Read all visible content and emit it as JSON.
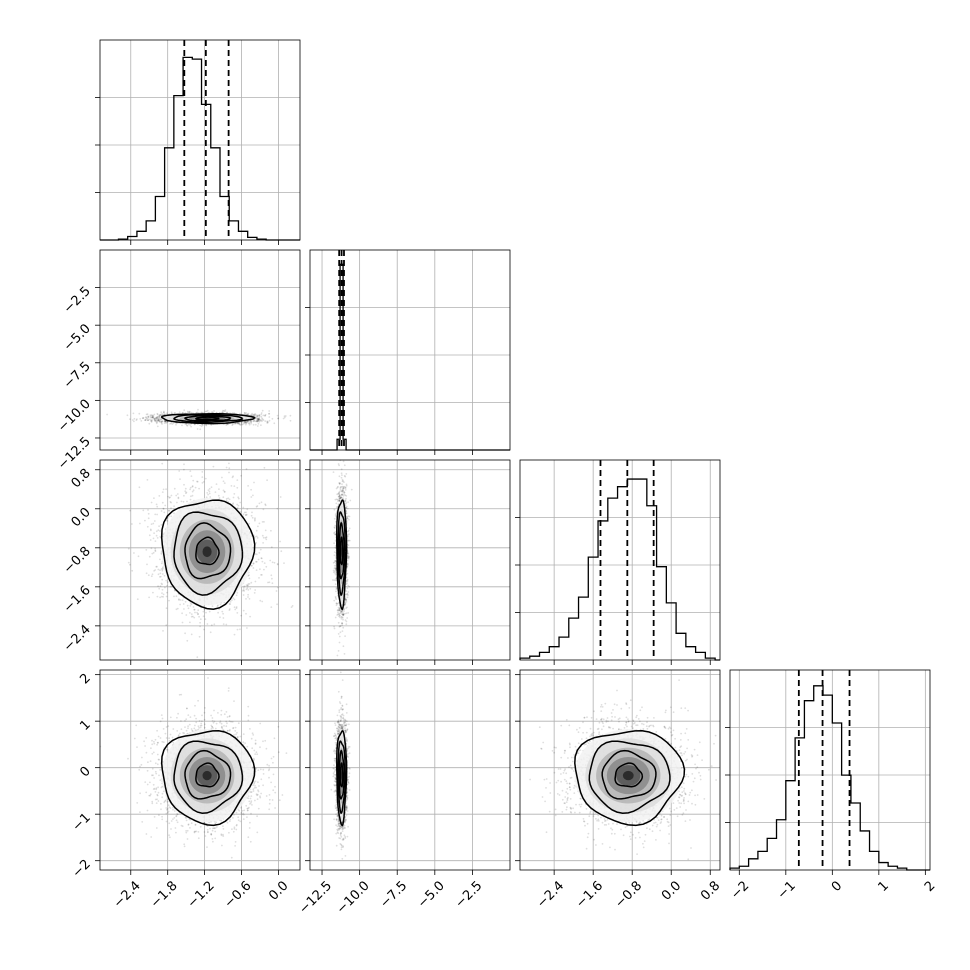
{
  "chart_data": {
    "type": "corner",
    "grid": true,
    "title": "",
    "parameters": [
      {
        "index": 0,
        "range": [
          -2.9,
          0.35
        ],
        "ticks": [
          -2.4,
          -1.8,
          -1.2,
          -0.6,
          0.0
        ],
        "tick_labels": [
          "−2.4",
          "−1.8",
          "−1.2",
          "−0.6",
          "0.0"
        ],
        "quantiles": [
          -1.53,
          -1.18,
          -0.81
        ],
        "center": -1.16,
        "sd": 0.37,
        "histogram": {
          "bin_edges": [
            -2.6,
            -2.45,
            -2.3,
            -2.15,
            -2.0,
            -1.85,
            -1.7,
            -1.55,
            -1.4,
            -1.25,
            -1.1,
            -0.95,
            -0.8,
            -0.65,
            -0.5,
            -0.35,
            -0.2,
            -0.05,
            0.1,
            0.25
          ],
          "counts": [
            1,
            4,
            10,
            22,
            50,
            106,
            166,
            210,
            208,
            156,
            106,
            50,
            22,
            10,
            3,
            1,
            0,
            0,
            0
          ]
        },
        "hist_ymax": 230
      },
      {
        "index": 1,
        "range": [
          -13.3,
          0.0
        ],
        "ticks": [
          -12.5,
          -10.0,
          -7.5,
          -5.0,
          -2.5
        ],
        "tick_labels": [
          "−12.5",
          "−10.0",
          "−7.5",
          "−5.0",
          "−2.5"
        ],
        "quantiles": [
          -11.36,
          -11.2,
          -11.04
        ],
        "center": -11.2,
        "sd": 0.16,
        "histogram": {
          "bin_edges": [
            -11.5,
            -11.3,
            -11.1,
            -10.9
          ],
          "counts": [
            30,
            520,
            30
          ]
        },
        "hist_ymax": 560
      },
      {
        "index": 2,
        "range": [
          -3.1,
          1.0
        ],
        "ticks": [
          -2.4,
          -1.6,
          -0.8,
          0.0,
          0.8
        ],
        "tick_labels": [
          "−2.4",
          "−1.6",
          "−0.8",
          "0.0",
          "0.8"
        ],
        "quantiles": [
          -1.45,
          -0.9,
          -0.36
        ],
        "center": -0.88,
        "sd": 0.55,
        "histogram": {
          "bin_edges": [
            -3.1,
            -2.9,
            -2.7,
            -2.5,
            -2.3,
            -2.1,
            -1.9,
            -1.7,
            -1.5,
            -1.3,
            -1.1,
            -0.9,
            -0.7,
            -0.5,
            -0.3,
            -0.1,
            0.1,
            0.3,
            0.5,
            0.7,
            0.9
          ],
          "counts": [
            2,
            4,
            8,
            14,
            24,
            44,
            66,
            108,
            146,
            170,
            182,
            190,
            190,
            162,
            98,
            60,
            28,
            14,
            8,
            2
          ]
        },
        "hist_ymax": 210
      },
      {
        "index": 3,
        "range": [
          -2.2,
          2.1
        ],
        "ticks": [
          -2,
          -1,
          0,
          1,
          2
        ],
        "tick_labels": [
          "−2",
          "−1",
          "0",
          "1",
          "2"
        ],
        "quantiles": [
          -0.72,
          -0.21,
          0.37
        ],
        "center": -0.17,
        "sd": 0.5,
        "histogram": {
          "bin_edges": [
            -2.2,
            -2.0,
            -1.8,
            -1.6,
            -1.4,
            -1.2,
            -1.0,
            -0.8,
            -0.6,
            -0.4,
            -0.2,
            0.0,
            0.2,
            0.4,
            0.6,
            0.8,
            1.0,
            1.2,
            1.4,
            1.6,
            1.8,
            2.0
          ],
          "counts": [
            2,
            4,
            12,
            20,
            34,
            54,
            96,
            142,
            182,
            198,
            188,
            158,
            102,
            72,
            42,
            20,
            8,
            4,
            2,
            0,
            0
          ]
        },
        "hist_ymax": 215
      }
    ]
  }
}
